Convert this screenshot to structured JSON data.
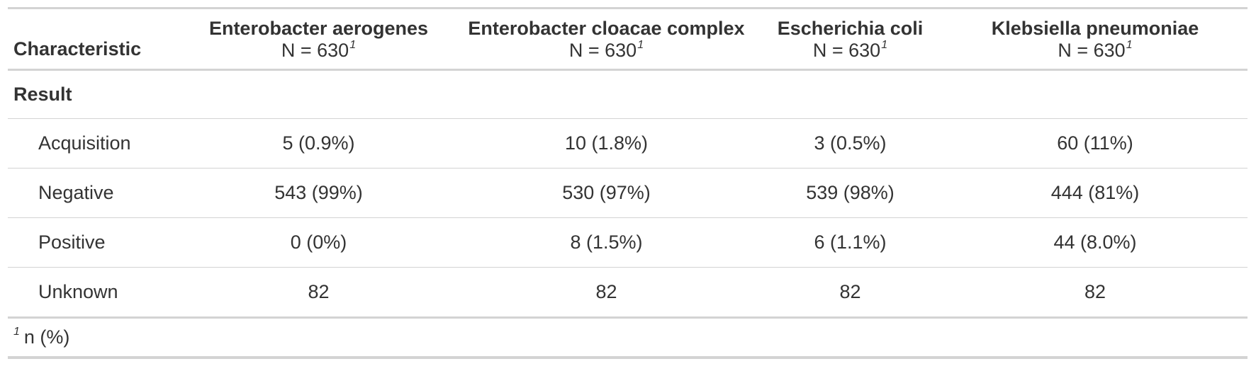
{
  "table": {
    "header": {
      "characteristic": "Characteristic",
      "columns": [
        {
          "name": "Enterobacter aerogenes",
          "n": "N = 630",
          "footnote_mark": "1"
        },
        {
          "name": "Enterobacter cloacae complex",
          "n": "N = 630",
          "footnote_mark": "1"
        },
        {
          "name": "Escherichia coli",
          "n": "N = 630",
          "footnote_mark": "1"
        },
        {
          "name": "Klebsiella pneumoniae",
          "n": "N = 630",
          "footnote_mark": "1"
        }
      ]
    },
    "group_label": "Result",
    "rows": [
      {
        "label": "Acquisition",
        "values": [
          "5 (0.9%)",
          "10 (1.8%)",
          "3 (0.5%)",
          "60 (11%)"
        ]
      },
      {
        "label": "Negative",
        "values": [
          "543 (99%)",
          "530 (97%)",
          "539 (98%)",
          "444 (81%)"
        ]
      },
      {
        "label": "Positive",
        "values": [
          "0 (0%)",
          "8 (1.5%)",
          "6 (1.1%)",
          "44 (8.0%)"
        ]
      },
      {
        "label": "Unknown",
        "values": [
          "82",
          "82",
          "82",
          "82"
        ]
      }
    ],
    "footnote": {
      "mark": "1",
      "text": "n (%)"
    }
  }
}
